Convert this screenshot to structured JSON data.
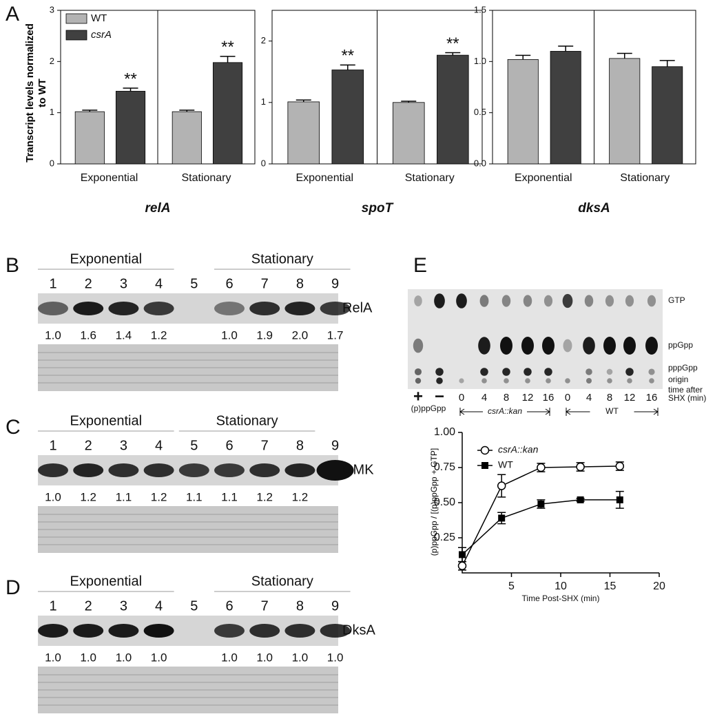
{
  "chart_data": [
    {
      "type": "bar",
      "panel": "A",
      "title": "relA",
      "ylabel": "Transcript levels normalized to WT",
      "categories": [
        "Exponential",
        "Stationary"
      ],
      "series": [
        {
          "name": "WT",
          "color": "#b3b3b3",
          "values": [
            1.02,
            1.02
          ],
          "errors": [
            0.03,
            0.03
          ]
        },
        {
          "name": "csrA",
          "name_style": "italic",
          "color": "#404040",
          "values": [
            1.42,
            1.98
          ],
          "errors": [
            0.06,
            0.12
          ],
          "significance": [
            "**",
            "**"
          ]
        }
      ],
      "ylim": [
        0,
        3
      ],
      "yticks": [
        0,
        1,
        2,
        3
      ],
      "legend": "upper left"
    },
    {
      "type": "bar",
      "title": "spoT",
      "categories": [
        "Exponential",
        "Stationary"
      ],
      "series": [
        {
          "name": "WT",
          "color": "#b3b3b3",
          "values": [
            1.01,
            1.0
          ],
          "errors": [
            0.03,
            0.02
          ]
        },
        {
          "name": "csrA",
          "name_style": "italic",
          "color": "#404040",
          "values": [
            1.53,
            1.77
          ],
          "errors": [
            0.08,
            0.04
          ],
          "significance": [
            "**",
            "**"
          ]
        }
      ],
      "ylim": [
        0,
        2.5
      ],
      "yticks": [
        0,
        1,
        2
      ]
    },
    {
      "type": "bar",
      "title": "dksA",
      "categories": [
        "Exponential",
        "Stationary"
      ],
      "series": [
        {
          "name": "WT",
          "color": "#b3b3b3",
          "values": [
            1.02,
            1.03
          ],
          "errors": [
            0.04,
            0.05
          ]
        },
        {
          "name": "csrA",
          "name_style": "italic",
          "color": "#404040",
          "values": [
            1.1,
            0.95
          ],
          "errors": [
            0.05,
            0.06
          ]
        }
      ],
      "ylim": [
        0,
        1.5
      ],
      "yticks": [
        {
          "value": 0,
          "label": "0.0"
        },
        0.5,
        {
          "value": 1,
          "label": "1.0"
        },
        1.5
      ]
    },
    {
      "type": "line",
      "xlabel": "Time Post-SHX (min)",
      "ylabel": "(p)ppGpp / [(p)ppGpp + GTP]",
      "series": [
        {
          "name": "csrA::kan",
          "name_style": "italic",
          "marker": "open-circle",
          "color": "#000000",
          "x": [
            0,
            4,
            8,
            12,
            16
          ],
          "values": [
            0.05,
            0.62,
            0.75,
            0.755,
            0.76
          ],
          "errors": [
            0.03,
            0.08,
            0.03,
            0.03,
            0.03
          ]
        },
        {
          "name": "WT",
          "marker": "filled-square",
          "color": "#000000",
          "x": [
            0,
            4,
            8,
            12,
            16
          ],
          "values": [
            0.13,
            0.39,
            0.49,
            0.52,
            0.52
          ],
          "errors": [
            0.05,
            0.04,
            0.03,
            0.01,
            0.06
          ]
        }
      ],
      "xlim": [
        0,
        20
      ],
      "xticks": [
        5,
        10,
        15,
        20
      ],
      "ylim": [
        0,
        1
      ],
      "yticks": [
        0.25,
        {
          "value": 0.5,
          "label": "0.50"
        },
        0.75,
        {
          "value": 1,
          "label": "1.00"
        }
      ],
      "legend": "upper left"
    }
  ],
  "blots": [
    {
      "panel": "B",
      "groups": [
        "Exponential",
        "Stationary"
      ],
      "lanes": [
        "1",
        "2",
        "3",
        "4",
        "5",
        "6",
        "7",
        "8",
        "9"
      ],
      "protein": "RelA",
      "quantification": [
        "1.0",
        "1.6",
        "1.4",
        "1.2",
        null,
        "1.0",
        "1.9",
        "2.0",
        "1.7"
      ]
    },
    {
      "panel": "C",
      "groups": [
        "Exponential",
        "Stationary"
      ],
      "lanes": [
        "1",
        "2",
        "3",
        "4",
        "5",
        "6",
        "7",
        "8",
        "9"
      ],
      "protein": "GMK",
      "quantification": [
        "1.0",
        "1.2",
        "1.1",
        "1.2",
        "1.1",
        "1.1",
        "1.2",
        "1.2",
        null
      ]
    },
    {
      "panel": "D",
      "groups": [
        "Exponential",
        "Stationary"
      ],
      "lanes": [
        "1",
        "2",
        "3",
        "4",
        "5",
        "6",
        "7",
        "8",
        "9"
      ],
      "protein": "DksA",
      "quantification": [
        "1.0",
        "1.0",
        "1.0",
        "1.0",
        null,
        "1.0",
        "1.0",
        "1.0",
        "1.0"
      ]
    }
  ],
  "tlc": {
    "panel": "E",
    "control_signs": [
      "+",
      "−"
    ],
    "control_label": "(p)ppGpp",
    "times": [
      "0",
      "4",
      "8",
      "12",
      "16",
      "0",
      "4",
      "8",
      "12",
      "16"
    ],
    "groups": [
      "csrA::kan",
      "WT"
    ],
    "spot_labels": [
      "GTP",
      "ppGpp",
      "pppGpp",
      "origin"
    ],
    "time_label": [
      "time after",
      "SHX (min)"
    ]
  }
}
